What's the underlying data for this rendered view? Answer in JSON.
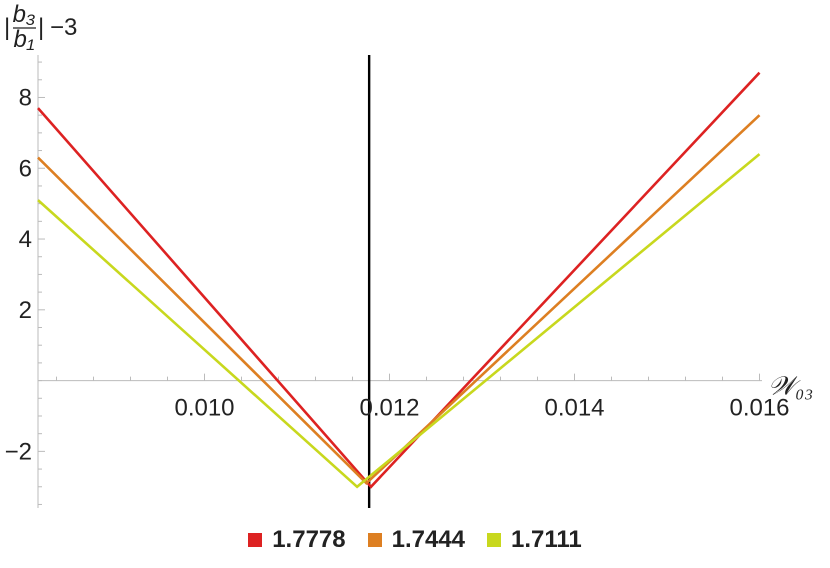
{
  "chart_data": {
    "type": "line",
    "xlabel": "𝒲₀₃",
    "ylabel_parts": {
      "bar_left": "|",
      "num": "b₃",
      "den": "b₁",
      "bar_right": "|",
      "suffix": "−3"
    },
    "xlim": [
      0.0082,
      0.0162
    ],
    "ylim": [
      -3.6,
      9.2
    ],
    "x_ticks": [
      {
        "value": 0.01,
        "label": "0.010"
      },
      {
        "value": 0.012,
        "label": "0.012"
      },
      {
        "value": 0.014,
        "label": "0.014"
      },
      {
        "value": 0.016,
        "label": "0.016"
      }
    ],
    "y_ticks": [
      {
        "value": -2,
        "label": "−2"
      },
      {
        "value": 2,
        "label": "2"
      },
      {
        "value": 4,
        "label": "4"
      },
      {
        "value": 6,
        "label": "6"
      },
      {
        "value": 8,
        "label": "8"
      }
    ],
    "vertical_line_x": 0.01178,
    "series": [
      {
        "name": "1.7778",
        "color": "#dd2222",
        "points": [
          [
            0.0082,
            7.7
          ],
          [
            0.0118,
            -3.0
          ],
          [
            0.016,
            8.7
          ]
        ]
      },
      {
        "name": "1.7444",
        "color": "#dd7f22",
        "points": [
          [
            0.0082,
            6.3
          ],
          [
            0.01175,
            -2.9
          ],
          [
            0.016,
            7.5
          ]
        ]
      },
      {
        "name": "1.7111",
        "color": "#c8d81e",
        "points": [
          [
            0.0082,
            5.1
          ],
          [
            0.01165,
            -3.0
          ],
          [
            0.016,
            6.4
          ]
        ]
      }
    ],
    "legend_position": "bottom",
    "grid": false
  }
}
